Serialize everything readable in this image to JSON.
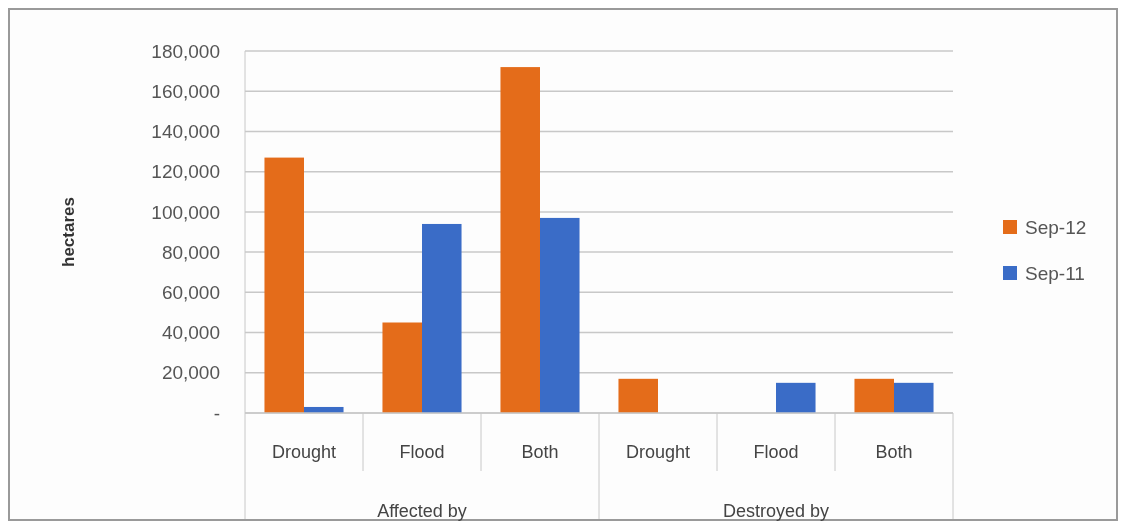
{
  "chart_data": {
    "type": "bar",
    "ylabel": "hectares",
    "categories": [
      "Drought",
      "Flood",
      "Both",
      "Drought",
      "Flood",
      "Both"
    ],
    "series": [
      {
        "name": "Sep-12",
        "color": "#e46c1a",
        "values": [
          127000,
          45000,
          172000,
          17000,
          0,
          17000
        ]
      },
      {
        "name": "Sep-11",
        "color": "#3a6cc7",
        "values": [
          3000,
          94000,
          97000,
          0,
          15000,
          15000
        ]
      }
    ],
    "ylim": [
      0,
      180000
    ],
    "yticks": [
      {
        "value": 0,
        "label": "-"
      },
      {
        "value": 20000,
        "label": "20,000"
      },
      {
        "value": 40000,
        "label": "40,000"
      },
      {
        "value": 60000,
        "label": "60,000"
      },
      {
        "value": 80000,
        "label": "80,000"
      },
      {
        "value": 100000,
        "label": "100,000"
      },
      {
        "value": 120000,
        "label": "120,000"
      },
      {
        "value": 140000,
        "label": "140,000"
      },
      {
        "value": 160000,
        "label": "160,000"
      },
      {
        "value": 180000,
        "label": "180,000"
      }
    ],
    "annotations": [
      "Affected by",
      "Destroyed by"
    ],
    "grid": "y",
    "legend": "right"
  }
}
